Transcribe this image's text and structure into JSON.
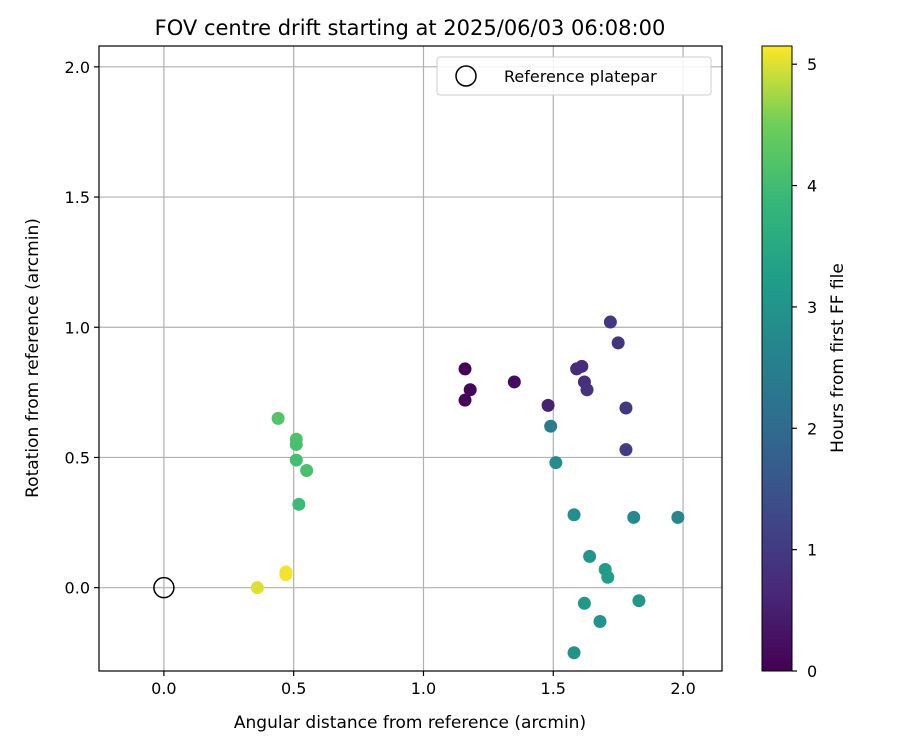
{
  "chart_data": {
    "type": "scatter",
    "title": "FOV centre drift starting at 2025/06/03 06:08:00",
    "xlabel": "Angular distance from reference (arcmin)",
    "ylabel": "Rotation from reference (arcmin)",
    "xlim": [
      -0.25,
      2.15
    ],
    "ylim": [
      -0.32,
      2.08
    ],
    "x_ticks": [
      0.0,
      0.5,
      1.0,
      1.5,
      2.0
    ],
    "y_ticks": [
      0.0,
      0.5,
      1.0,
      1.5,
      2.0
    ],
    "x_tick_labels": [
      "0.0",
      "0.5",
      "1.0",
      "1.5",
      "2.0"
    ],
    "y_tick_labels": [
      "0.0",
      "0.5",
      "1.0",
      "1.5",
      "2.0"
    ],
    "grid": true,
    "colormap": "viridis",
    "colorbar": {
      "label": "Hours from first FF file",
      "range": [
        0,
        5.15
      ],
      "ticks": [
        0,
        1,
        2,
        3,
        4,
        5
      ],
      "tick_labels": [
        "0",
        "1",
        "2",
        "3",
        "4",
        "5"
      ]
    },
    "reference": {
      "label": "Reference platepar",
      "x": 0.0,
      "y": 0.0
    },
    "legend_position": "top-right",
    "points": [
      {
        "x": 1.16,
        "y": 0.84,
        "hours": 0.05
      },
      {
        "x": 1.18,
        "y": 0.76,
        "hours": 0.1
      },
      {
        "x": 1.16,
        "y": 0.72,
        "hours": 0.12
      },
      {
        "x": 1.35,
        "y": 0.79,
        "hours": 0.2
      },
      {
        "x": 1.48,
        "y": 0.7,
        "hours": 0.55
      },
      {
        "x": 1.59,
        "y": 0.84,
        "hours": 0.7
      },
      {
        "x": 1.61,
        "y": 0.85,
        "hours": 0.75
      },
      {
        "x": 1.62,
        "y": 0.79,
        "hours": 0.8
      },
      {
        "x": 1.63,
        "y": 0.76,
        "hours": 0.85
      },
      {
        "x": 1.72,
        "y": 1.02,
        "hours": 0.95
      },
      {
        "x": 1.75,
        "y": 0.94,
        "hours": 0.9
      },
      {
        "x": 1.78,
        "y": 0.69,
        "hours": 1.0
      },
      {
        "x": 1.78,
        "y": 0.53,
        "hours": 1.05
      },
      {
        "x": 1.49,
        "y": 0.62,
        "hours": 2.4
      },
      {
        "x": 1.51,
        "y": 0.48,
        "hours": 2.8
      },
      {
        "x": 1.58,
        "y": 0.28,
        "hours": 2.85
      },
      {
        "x": 1.81,
        "y": 0.27,
        "hours": 2.75
      },
      {
        "x": 1.98,
        "y": 0.27,
        "hours": 2.7
      },
      {
        "x": 1.64,
        "y": 0.12,
        "hours": 3.0
      },
      {
        "x": 1.7,
        "y": 0.07,
        "hours": 3.2
      },
      {
        "x": 1.71,
        "y": 0.04,
        "hours": 3.25
      },
      {
        "x": 1.62,
        "y": -0.06,
        "hours": 3.1
      },
      {
        "x": 1.83,
        "y": -0.05,
        "hours": 3.05
      },
      {
        "x": 1.68,
        "y": -0.13,
        "hours": 3.0
      },
      {
        "x": 1.58,
        "y": -0.25,
        "hours": 2.95
      },
      {
        "x": 0.44,
        "y": 0.65,
        "hours": 4.2
      },
      {
        "x": 0.51,
        "y": 0.57,
        "hours": 4.15
      },
      {
        "x": 0.51,
        "y": 0.55,
        "hours": 4.1
      },
      {
        "x": 0.51,
        "y": 0.49,
        "hours": 4.05
      },
      {
        "x": 0.55,
        "y": 0.45,
        "hours": 4.1
      },
      {
        "x": 0.52,
        "y": 0.32,
        "hours": 3.95
      },
      {
        "x": 0.47,
        "y": 0.06,
        "hours": 5.1
      },
      {
        "x": 0.47,
        "y": 0.05,
        "hours": 5.1
      },
      {
        "x": 0.36,
        "y": 0.0,
        "hours": 5.0
      }
    ]
  }
}
